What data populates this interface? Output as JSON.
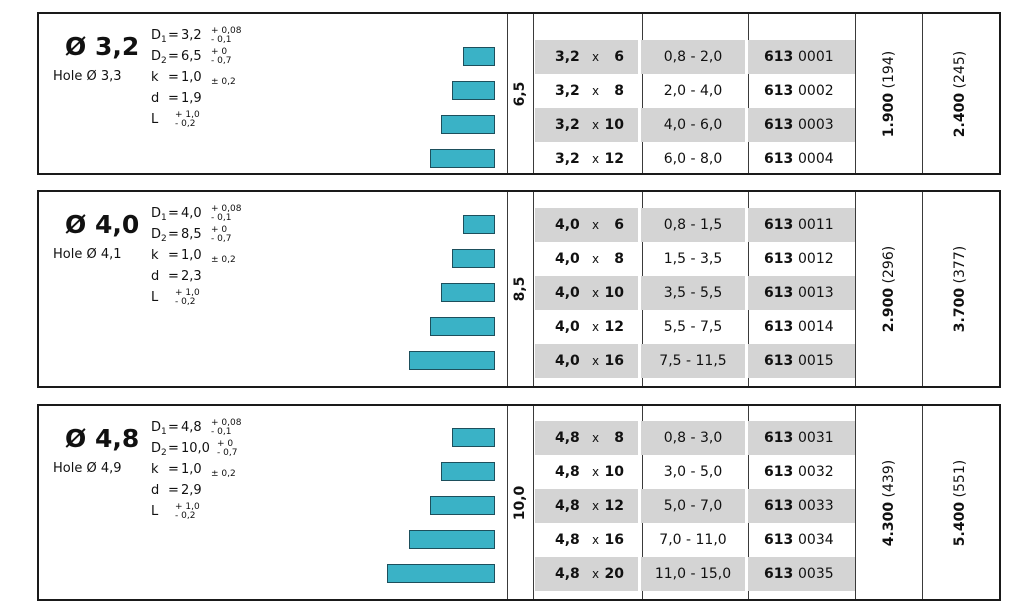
{
  "colors": {
    "bar": "#3ab2c6",
    "shade": "#d4d4d4",
    "border": "#1a1a1a"
  },
  "blocks": [
    {
      "title": "Ø 3,2",
      "hole": "Hole Ø 3,3",
      "d1": {
        "label": "D",
        "sub": "1",
        "eq": "=",
        "val": "3,2",
        "tol_up": "+ 0,08",
        "tol_low": "- 0,1"
      },
      "d2": {
        "label": "D",
        "sub": "2",
        "eq": "=",
        "val": "6,5",
        "tol_up": "+ 0",
        "tol_low": "- 0,7"
      },
      "k": {
        "label": "k",
        "eq": "=",
        "val": "1,0",
        "tol": "± 0,2"
      },
      "d": {
        "label": "d",
        "eq": "=",
        "val": "1,9"
      },
      "L": {
        "label": "L",
        "tol_up": "+ 1,0",
        "tol_low": "- 0,2"
      },
      "head": "6,5",
      "price1_bold": "1.900",
      "price1_paren": "(194)",
      "price2_bold": "2.400",
      "price2_paren": "(245)",
      "bar_relative_lengths": [
        0.3,
        0.4,
        0.5,
        0.6
      ],
      "rows": [
        {
          "dia": "3,2",
          "x": "x",
          "len": "6",
          "range": "0,8 - 2,0",
          "code_bold": "613",
          "code": "0001"
        },
        {
          "dia": "3,2",
          "x": "x",
          "len": "8",
          "range": "2,0 - 4,0",
          "code_bold": "613",
          "code": "0002"
        },
        {
          "dia": "3,2",
          "x": "x",
          "len": "10",
          "range": "4,0 - 6,0",
          "code_bold": "613",
          "code": "0003"
        },
        {
          "dia": "3,2",
          "x": "x",
          "len": "12",
          "range": "6,0 - 8,0",
          "code_bold": "613",
          "code": "0004"
        }
      ]
    },
    {
      "title": "Ø 4,0",
      "hole": "Hole Ø 4,1",
      "d1": {
        "label": "D",
        "sub": "1",
        "eq": "=",
        "val": "4,0",
        "tol_up": "+ 0,08",
        "tol_low": "- 0,1"
      },
      "d2": {
        "label": "D",
        "sub": "2",
        "eq": "=",
        "val": "8,5",
        "tol_up": "+ 0",
        "tol_low": "- 0,7"
      },
      "k": {
        "label": "k",
        "eq": "=",
        "val": "1,0",
        "tol": "± 0,2"
      },
      "d": {
        "label": "d",
        "eq": "=",
        "val": "2,3"
      },
      "L": {
        "label": "L",
        "tol_up": "+ 1,0",
        "tol_low": "- 0,2"
      },
      "head": "8,5",
      "price1_bold": "2.900",
      "price1_paren": "(296)",
      "price2_bold": "3.700",
      "price2_paren": "(377)",
      "bar_relative_lengths": [
        0.3,
        0.4,
        0.5,
        0.6,
        0.8
      ],
      "rows": [
        {
          "dia": "4,0",
          "x": "x",
          "len": "6",
          "range": "0,8 - 1,5",
          "code_bold": "613",
          "code": "0011"
        },
        {
          "dia": "4,0",
          "x": "x",
          "len": "8",
          "range": "1,5 - 3,5",
          "code_bold": "613",
          "code": "0012"
        },
        {
          "dia": "4,0",
          "x": "x",
          "len": "10",
          "range": "3,5 - 5,5",
          "code_bold": "613",
          "code": "0013"
        },
        {
          "dia": "4,0",
          "x": "x",
          "len": "12",
          "range": "5,5 - 7,5",
          "code_bold": "613",
          "code": "0014"
        },
        {
          "dia": "4,0",
          "x": "x",
          "len": "16",
          "range": "7,5 - 11,5",
          "code_bold": "613",
          "code": "0015"
        }
      ]
    },
    {
      "title": "Ø 4,8",
      "hole": "Hole Ø 4,9",
      "d1": {
        "label": "D",
        "sub": "1",
        "eq": "=",
        "val": "4,8",
        "tol_up": "+ 0,08",
        "tol_low": "- 0,1"
      },
      "d2": {
        "label": "D",
        "sub": "2",
        "eq": "=",
        "val": "10,0",
        "tol_up": "+ 0",
        "tol_low": "- 0,7"
      },
      "k": {
        "label": "k",
        "eq": "=",
        "val": "1,0",
        "tol": "± 0,2"
      },
      "d": {
        "label": "d",
        "eq": "=",
        "val": "2,9"
      },
      "L": {
        "label": "L",
        "tol_up": "+ 1,0",
        "tol_low": "- 0,2"
      },
      "head": "10,0",
      "price1_bold": "4.300",
      "price1_paren": "(439)",
      "price2_bold": "5.400",
      "price2_paren": "(551)",
      "bar_relative_lengths": [
        0.4,
        0.5,
        0.6,
        0.8,
        1.0
      ],
      "rows": [
        {
          "dia": "4,8",
          "x": "x",
          "len": "8",
          "range": "0,8 - 3,0",
          "code_bold": "613",
          "code": "0031"
        },
        {
          "dia": "4,8",
          "x": "x",
          "len": "10",
          "range": "3,0 - 5,0",
          "code_bold": "613",
          "code": "0032"
        },
        {
          "dia": "4,8",
          "x": "x",
          "len": "12",
          "range": "5,0 - 7,0",
          "code_bold": "613",
          "code": "0033"
        },
        {
          "dia": "4,8",
          "x": "x",
          "len": "16",
          "range": "7,0 - 11,0",
          "code_bold": "613",
          "code": "0034"
        },
        {
          "dia": "4,8",
          "x": "x",
          "len": "20",
          "range": "11,0 - 15,0",
          "code_bold": "613",
          "code": "0035"
        }
      ]
    }
  ]
}
